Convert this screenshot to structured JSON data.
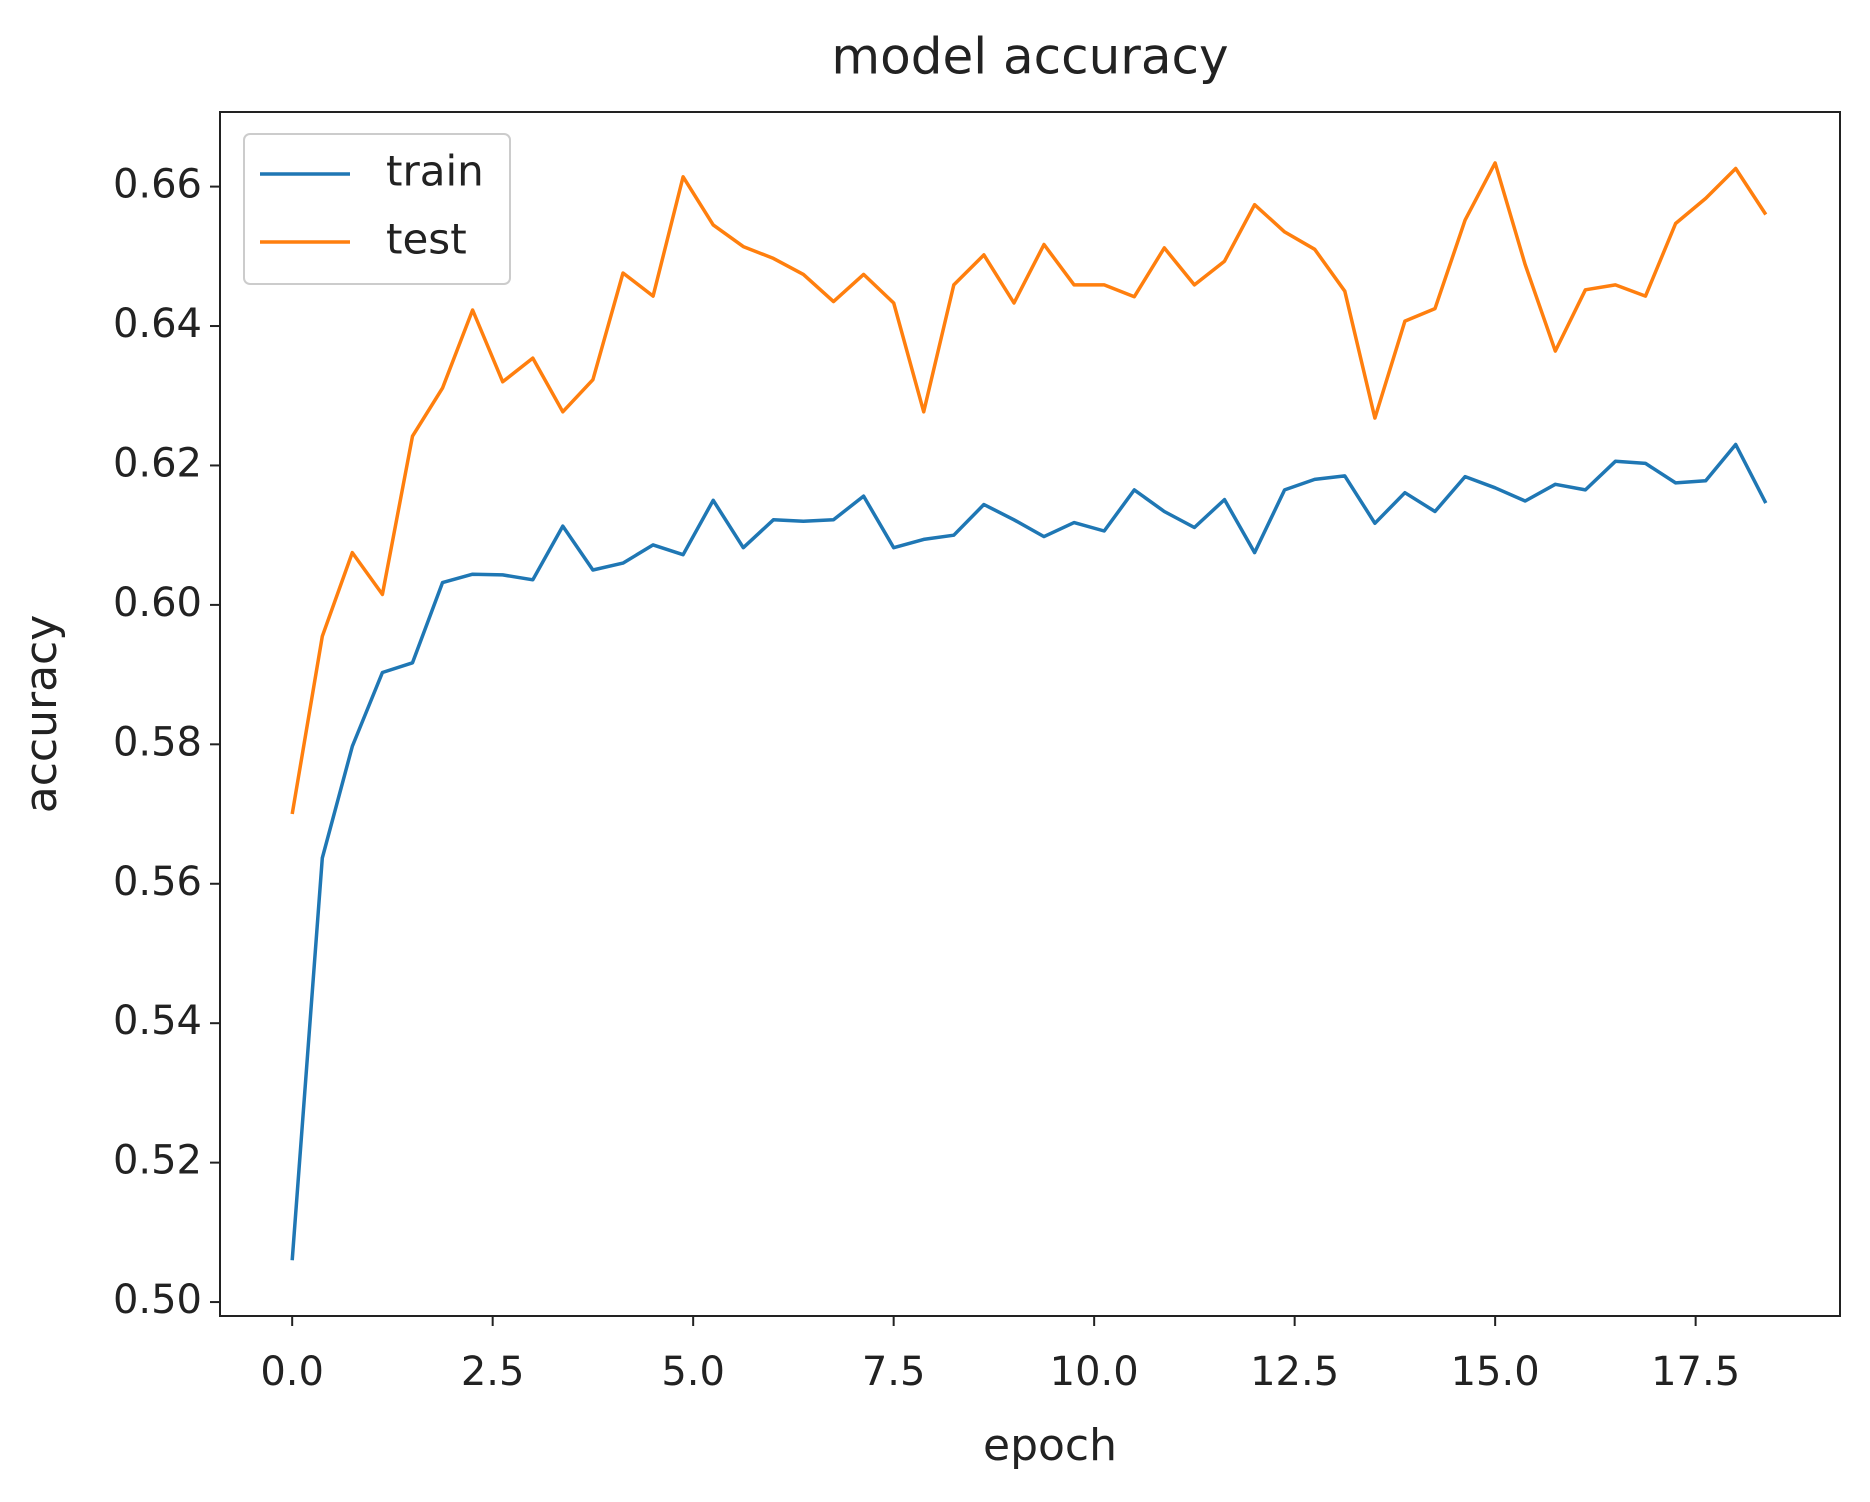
{
  "chart_data": {
    "type": "line",
    "title": "model accuracy",
    "xlabel": "epoch",
    "ylabel": "accuracy",
    "x": [
      0,
      0.375,
      0.75,
      1.125,
      1.5,
      1.875,
      2.25,
      2.625,
      3,
      3.375,
      3.75,
      4.125,
      4.5,
      4.875,
      5.25,
      5.625,
      6,
      6.375,
      6.75,
      7.125,
      7.5,
      7.875,
      8.25,
      8.625,
      9,
      9.375,
      9.75,
      10.125,
      10.5,
      10.875,
      11.25,
      11.625,
      12,
      12.375,
      12.75,
      13.125,
      13.5,
      13.875,
      14.25,
      14.625,
      15,
      15.375,
      15.75,
      16.125,
      16.5,
      16.875,
      17.25,
      17.625,
      18,
      18.375
    ],
    "series": [
      {
        "name": "train",
        "color": "#1f77b4",
        "values": [
          0.506,
          0.5637,
          0.5797,
          0.5903,
          0.5917,
          0.6032,
          0.6044,
          0.6043,
          0.6036,
          0.6113,
          0.605,
          0.606,
          0.6086,
          0.6072,
          0.615,
          0.6082,
          0.6122,
          0.612,
          0.6122,
          0.6156,
          0.6082,
          0.6094,
          0.61,
          0.6144,
          0.6122,
          0.6098,
          0.6118,
          0.6106,
          0.6165,
          0.6134,
          0.6111,
          0.6151,
          0.6075,
          0.6165,
          0.618,
          0.6185,
          0.6117,
          0.6161,
          0.6134,
          0.6184,
          0.6168,
          0.6149,
          0.6173,
          0.6165,
          0.6206,
          0.6203,
          0.6175,
          0.6178,
          0.623,
          0.6146
        ]
      },
      {
        "name": "test",
        "color": "#ff7f0e",
        "values": [
          0.57,
          0.5955,
          0.6075,
          0.6015,
          0.6242,
          0.6311,
          0.6423,
          0.632,
          0.6354,
          0.6277,
          0.6323,
          0.6476,
          0.6443,
          0.6614,
          0.6545,
          0.6514,
          0.6497,
          0.6474,
          0.6435,
          0.6474,
          0.6433,
          0.6277,
          0.6459,
          0.6502,
          0.6433,
          0.6517,
          0.6459,
          0.6459,
          0.6442,
          0.6512,
          0.6459,
          0.6493,
          0.6574,
          0.6535,
          0.651,
          0.645,
          0.6268,
          0.6407,
          0.6425,
          0.6552,
          0.6634,
          0.6488,
          0.6364,
          0.6452,
          0.6459,
          0.6443,
          0.6547,
          0.6583,
          0.6626,
          0.656
        ]
      }
    ],
    "xlim": [
      -0.9,
      19.3
    ],
    "ylim": [
      0.498,
      0.6707
    ],
    "xticks": [
      {
        "value": 0,
        "label": "0.0"
      },
      2.5,
      {
        "value": 5,
        "label": "5.0"
      },
      7.5,
      {
        "value": 10,
        "label": "10.0"
      },
      12.5,
      {
        "value": 15,
        "label": "15.0"
      },
      17.5
    ],
    "yticks": [
      {
        "value": 0.5,
        "label": "0.50"
      },
      0.52,
      0.54,
      0.56,
      0.58,
      {
        "value": 0.6,
        "label": "0.60"
      },
      0.62,
      0.64,
      0.66
    ],
    "legend": "upper left",
    "grid": false
  }
}
